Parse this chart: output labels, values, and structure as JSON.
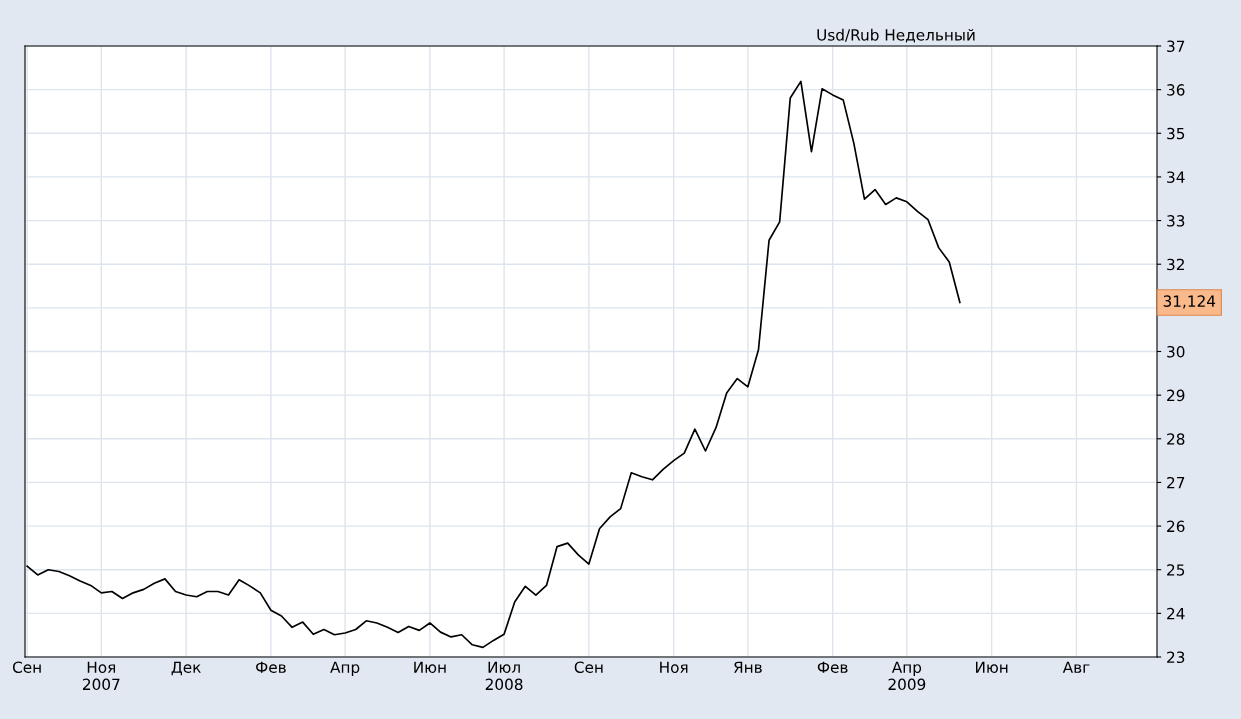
{
  "chart_data": {
    "type": "line",
    "title": "Usd/Rub Недельный",
    "categories": [
      "Сен",
      null,
      null,
      null,
      null,
      null,
      null,
      "Ноя\n2007",
      null,
      null,
      null,
      null,
      null,
      null,
      null,
      "Дек",
      null,
      null,
      null,
      null,
      null,
      null,
      null,
      "Фев",
      null,
      null,
      null,
      null,
      null,
      null,
      "Апр",
      null,
      null,
      null,
      null,
      null,
      null,
      null,
      "Июн",
      null,
      null,
      null,
      null,
      null,
      null,
      "Июл\n2008",
      null,
      null,
      null,
      null,
      null,
      null,
      null,
      "Сен",
      null,
      null,
      null,
      null,
      null,
      null,
      null,
      "Ноя",
      null,
      null,
      null,
      null,
      null,
      null,
      "Янв",
      null,
      null,
      null,
      null,
      null,
      null,
      null,
      "Фев",
      null,
      null,
      null,
      null,
      null,
      null,
      "Апр\n2009",
      null,
      null,
      null,
      null,
      null,
      null,
      null,
      "Июн",
      null,
      null,
      null,
      null,
      null,
      null,
      null,
      "Авг",
      null,
      null,
      null,
      null,
      null,
      null,
      null
    ],
    "series": [
      {
        "color": "#000000",
        "values": [
          25.08,
          24.88,
          25.0,
          24.96,
          24.86,
          24.74,
          24.64,
          24.47,
          24.5,
          24.34,
          24.47,
          24.55,
          24.69,
          24.79,
          24.5,
          24.42,
          24.38,
          24.5,
          24.5,
          24.42,
          24.77,
          24.63,
          24.47,
          24.07,
          23.94,
          23.68,
          23.8,
          23.52,
          23.63,
          23.51,
          23.55,
          23.63,
          23.83,
          23.78,
          23.68,
          23.56,
          23.7,
          23.61,
          23.78,
          23.57,
          23.46,
          23.51,
          23.28,
          23.22,
          23.38,
          23.52,
          24.26,
          24.62,
          24.42,
          24.64,
          25.53,
          25.61,
          25.34,
          25.13,
          25.94,
          26.21,
          26.4,
          27.22,
          27.13,
          27.06,
          27.3,
          27.5,
          27.67,
          28.22,
          27.72,
          28.26,
          29.05,
          29.38,
          29.19,
          30.04,
          32.55,
          32.97,
          35.81,
          36.19,
          34.58,
          36.02,
          35.88,
          35.76,
          34.77,
          33.49,
          33.71,
          33.37,
          33.52,
          33.43,
          33.21,
          33.02,
          32.38,
          32.05,
          31.124,
          null,
          null,
          null,
          null,
          null,
          null,
          null,
          null,
          null,
          null,
          null,
          null,
          null,
          null,
          null,
          null,
          null,
          null
        ]
      }
    ],
    "ylim": [
      23,
      37
    ],
    "yticks": [
      23,
      24,
      25,
      26,
      27,
      28,
      29,
      30,
      {
        "value": 31,
        "label": null
      },
      32,
      33,
      34,
      35,
      36,
      37
    ],
    "annotations": [
      "31,124"
    ],
    "grid": true,
    "marker": "none",
    "line_style": "solid"
  }
}
